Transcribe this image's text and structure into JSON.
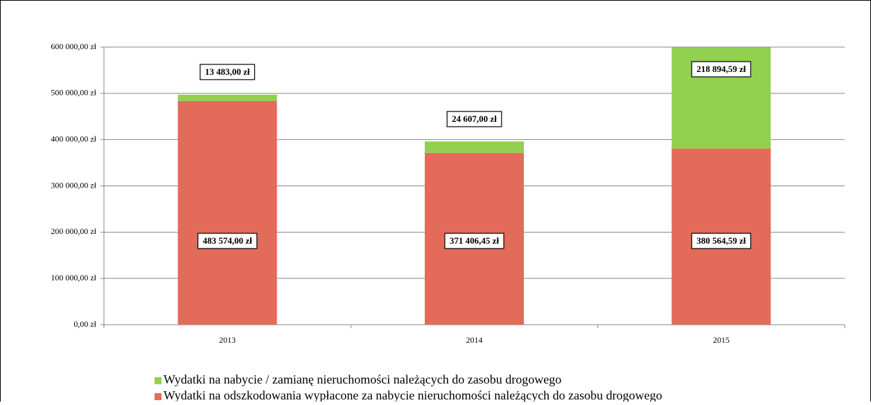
{
  "chart_data": {
    "type": "stacked_bar",
    "categories": [
      "2013",
      "2014",
      "2015"
    ],
    "series": [
      {
        "name": "Wydatki na nabycie / zamianę nieruchomości należących do zasobu drogowego",
        "color": "#92d050",
        "values": [
          13483,
          24607,
          218894.59
        ],
        "value_labels": [
          "13 483,00 zł",
          "24 607,00 zł",
          "218 894,59 zł"
        ]
      },
      {
        "name": "Wydatki na odszkodowania wypłacone za nabycie nieruchomości należących do zasobu drogowego",
        "color": "#e26b5a",
        "values": [
          483574,
          371406.45,
          380564.59
        ],
        "value_labels": [
          "483 574,00 zł",
          "371 406,45 zł",
          "380 564,59 zł"
        ]
      }
    ],
    "ylim": [
      0,
      600000
    ],
    "yticks": [
      {
        "value": 0,
        "label": "0,00 zł"
      },
      {
        "value": 100000,
        "label": "100 000,00 zł"
      },
      {
        "value": 200000,
        "label": "200 000,00 zł"
      },
      {
        "value": 300000,
        "label": "300 000,00 zł"
      },
      {
        "value": 400000,
        "label": "400 000,00 zł"
      },
      {
        "value": 500000,
        "label": "500 000,00 zł"
      },
      {
        "value": 600000,
        "label": "600 000,00 zł"
      }
    ],
    "grid": true
  }
}
